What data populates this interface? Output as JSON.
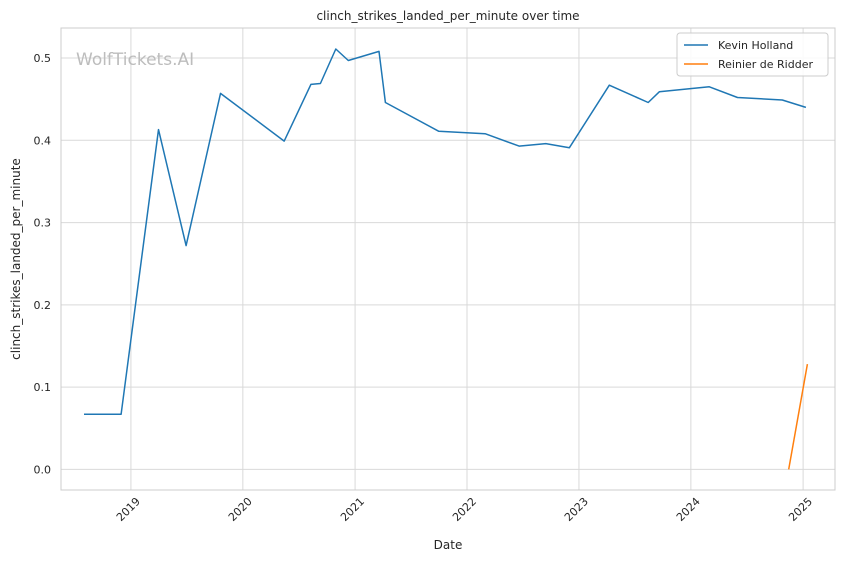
{
  "chart_data": {
    "type": "line",
    "title": "clinch_strikes_landed_per_minute over time",
    "xlabel": "Date",
    "ylabel": "clinch_strikes_landed_per_minute",
    "watermark": "WolfTickets.AI",
    "ylim": [
      -0.025,
      0.5365
    ],
    "xlim": [
      "2018-05-18",
      "2025-04-15"
    ],
    "x_ticks": [
      "2019-01-01",
      "2020-01-01",
      "2021-01-01",
      "2022-01-01",
      "2023-01-01",
      "2024-01-01",
      "2025-01-01"
    ],
    "x_tick_labels": [
      "2019",
      "2020",
      "2021",
      "2022",
      "2023",
      "2024",
      "2025"
    ],
    "y_ticks": [
      0.0,
      0.1,
      0.2,
      0.3,
      0.4,
      0.5
    ],
    "y_tick_labels": [
      "0.0",
      "0.1",
      "0.2",
      "0.3",
      "0.4",
      "0.5"
    ],
    "grid": true,
    "legend_position": "top-right",
    "series": [
      {
        "name": "Kevin Holland",
        "color": "#1f77b4",
        "points": [
          {
            "x": "2018-08-01",
            "y": 0.067
          },
          {
            "x": "2018-11-30",
            "y": 0.067
          },
          {
            "x": "2019-04-01",
            "y": 0.413
          },
          {
            "x": "2019-06-30",
            "y": 0.272
          },
          {
            "x": "2019-10-20",
            "y": 0.457
          },
          {
            "x": "2020-05-15",
            "y": 0.399
          },
          {
            "x": "2020-08-10",
            "y": 0.468
          },
          {
            "x": "2020-09-10",
            "y": 0.469
          },
          {
            "x": "2020-10-30",
            "y": 0.511
          },
          {
            "x": "2020-12-10",
            "y": 0.497
          },
          {
            "x": "2021-03-20",
            "y": 0.508
          },
          {
            "x": "2021-04-10",
            "y": 0.446
          },
          {
            "x": "2021-10-01",
            "y": 0.411
          },
          {
            "x": "2022-03-01",
            "y": 0.408
          },
          {
            "x": "2022-06-20",
            "y": 0.393
          },
          {
            "x": "2022-09-15",
            "y": 0.396
          },
          {
            "x": "2022-12-01",
            "y": 0.391
          },
          {
            "x": "2023-04-10",
            "y": 0.467
          },
          {
            "x": "2023-08-15",
            "y": 0.446
          },
          {
            "x": "2023-09-20",
            "y": 0.459
          },
          {
            "x": "2024-03-01",
            "y": 0.465
          },
          {
            "x": "2024-06-01",
            "y": 0.452
          },
          {
            "x": "2024-10-25",
            "y": 0.449
          },
          {
            "x": "2025-01-10",
            "y": 0.44
          }
        ]
      },
      {
        "name": "Reinier de Ridder",
        "color": "#ff7f0e",
        "points": [
          {
            "x": "2024-11-15",
            "y": 0.0
          },
          {
            "x": "2025-01-15",
            "y": 0.128
          }
        ]
      }
    ]
  }
}
